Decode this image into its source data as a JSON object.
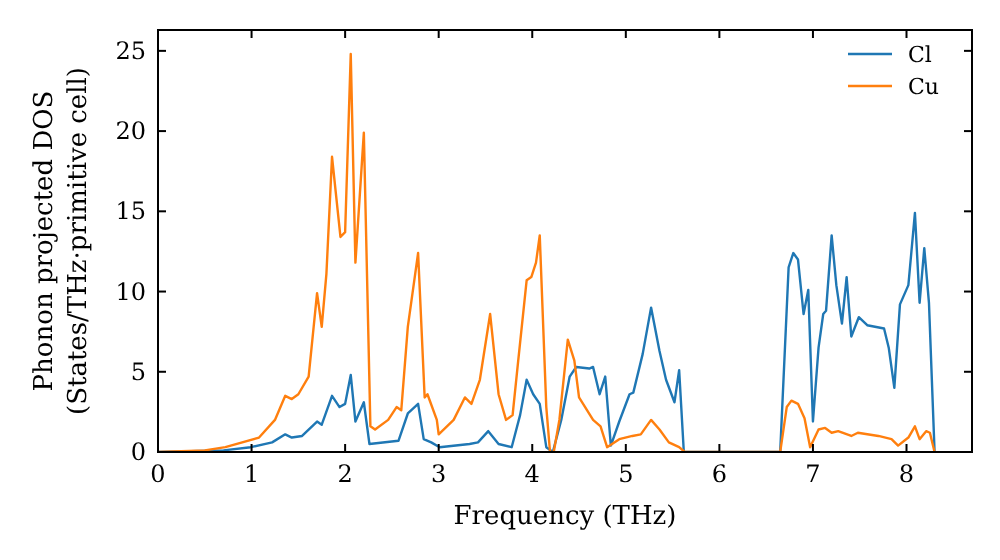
{
  "chart_data": {
    "type": "line",
    "xlabel": "Frequency (THz)",
    "ylabel": "Phonon projected DOS\n(States/THz·primitive cell)",
    "xlim": [
      0,
      8.7
    ],
    "ylim": [
      0,
      26.3
    ],
    "xticks": [
      0,
      1,
      2,
      3,
      4,
      5,
      6,
      7,
      8
    ],
    "yticks": [
      0,
      5,
      10,
      15,
      20,
      25
    ],
    "legend": "top right",
    "grid": false,
    "marker": "none",
    "line_style": "solid",
    "series": [
      {
        "name": "Cl",
        "color": "#1f77b4",
        "x": [
          0,
          0.7,
          0.99,
          1.22,
          1.36,
          1.43,
          1.54,
          1.7,
          1.75,
          1.86,
          1.94,
          2.0,
          2.06,
          2.11,
          2.2,
          2.26,
          2.57,
          2.67,
          2.78,
          2.84,
          2.92,
          3.01,
          3.33,
          3.42,
          3.53,
          3.64,
          3.78,
          3.87,
          3.94,
          4.01,
          4.08,
          4.15,
          4.22,
          4.31,
          4.4,
          4.47,
          4.61,
          4.65,
          4.72,
          4.78,
          4.84,
          4.93,
          5.04,
          5.08,
          5.18,
          5.27,
          5.36,
          5.43,
          5.52,
          5.57,
          5.62,
          6.65,
          6.74,
          6.79,
          6.84,
          6.9,
          6.95,
          7.0,
          7.06,
          7.11,
          7.14,
          7.2,
          7.25,
          7.31,
          7.36,
          7.41,
          7.49,
          7.58,
          7.76,
          7.81,
          7.87,
          7.93,
          8.02,
          8.09,
          8.14,
          8.19,
          8.24,
          8.3
        ],
        "values": [
          0,
          0.1,
          0.3,
          0.6,
          1.1,
          0.9,
          1.0,
          1.9,
          1.7,
          3.5,
          2.8,
          3.0,
          4.8,
          1.9,
          3.1,
          0.5,
          0.7,
          2.4,
          3.0,
          0.8,
          0.6,
          0.3,
          0.5,
          0.6,
          1.3,
          0.5,
          0.3,
          2.3,
          4.5,
          3.6,
          3.0,
          0.3,
          0,
          2.0,
          4.7,
          5.3,
          5.2,
          5.3,
          3.6,
          4.7,
          0.4,
          1.9,
          3.6,
          3.7,
          6.1,
          9.0,
          6.3,
          4.5,
          3.1,
          5.1,
          0,
          0,
          11.5,
          12.4,
          12.0,
          8.6,
          10.1,
          1.9,
          6.5,
          8.6,
          8.8,
          13.5,
          10.4,
          8.0,
          10.9,
          7.2,
          8.4,
          7.9,
          7.7,
          6.5,
          4.0,
          9.2,
          10.4,
          14.9,
          9.3,
          12.7,
          9.3,
          0
        ]
      },
      {
        "name": "Cu",
        "color": "#ff7f0e",
        "x": [
          0,
          0.5,
          0.72,
          1.08,
          1.25,
          1.36,
          1.43,
          1.5,
          1.61,
          1.7,
          1.75,
          1.8,
          1.86,
          1.95,
          2.0,
          2.06,
          2.11,
          2.2,
          2.27,
          2.32,
          2.46,
          2.55,
          2.6,
          2.67,
          2.78,
          2.85,
          2.88,
          2.98,
          3.0,
          3.16,
          3.28,
          3.35,
          3.44,
          3.55,
          3.64,
          3.72,
          3.79,
          3.85,
          3.94,
          3.99,
          4.04,
          4.08,
          4.15,
          4.19,
          4.23,
          4.29,
          4.38,
          4.45,
          4.5,
          4.65,
          4.73,
          4.8,
          4.93,
          5.07,
          5.16,
          5.27,
          5.36,
          5.46,
          5.57,
          5.63,
          6.65,
          6.72,
          6.77,
          6.84,
          6.91,
          6.97,
          7.06,
          7.13,
          7.2,
          7.27,
          7.41,
          7.48,
          7.7,
          7.84,
          7.91,
          8.02,
          8.09,
          8.14,
          8.21,
          8.25,
          8.3
        ],
        "values": [
          0,
          0.1,
          0.3,
          0.9,
          2.0,
          3.5,
          3.3,
          3.6,
          4.7,
          9.9,
          7.8,
          11.1,
          18.4,
          13.4,
          13.7,
          24.8,
          11.8,
          19.9,
          1.6,
          1.4,
          2.0,
          2.8,
          2.6,
          7.8,
          12.4,
          3.4,
          3.6,
          2.0,
          1.1,
          2.0,
          3.4,
          3.0,
          4.5,
          8.6,
          3.6,
          2.0,
          2.3,
          5.7,
          10.7,
          10.9,
          11.8,
          13.5,
          2.8,
          0,
          0,
          2.0,
          7.0,
          5.7,
          3.4,
          2.0,
          1.6,
          0.3,
          0.8,
          1.0,
          1.1,
          2.0,
          1.4,
          0.6,
          0.3,
          0,
          0,
          2.8,
          3.2,
          3.0,
          2.1,
          0.3,
          1.4,
          1.5,
          1.2,
          1.3,
          1.0,
          1.2,
          1.0,
          0.8,
          0.4,
          0.9,
          1.6,
          0.8,
          1.3,
          1.2,
          0
        ]
      }
    ]
  }
}
